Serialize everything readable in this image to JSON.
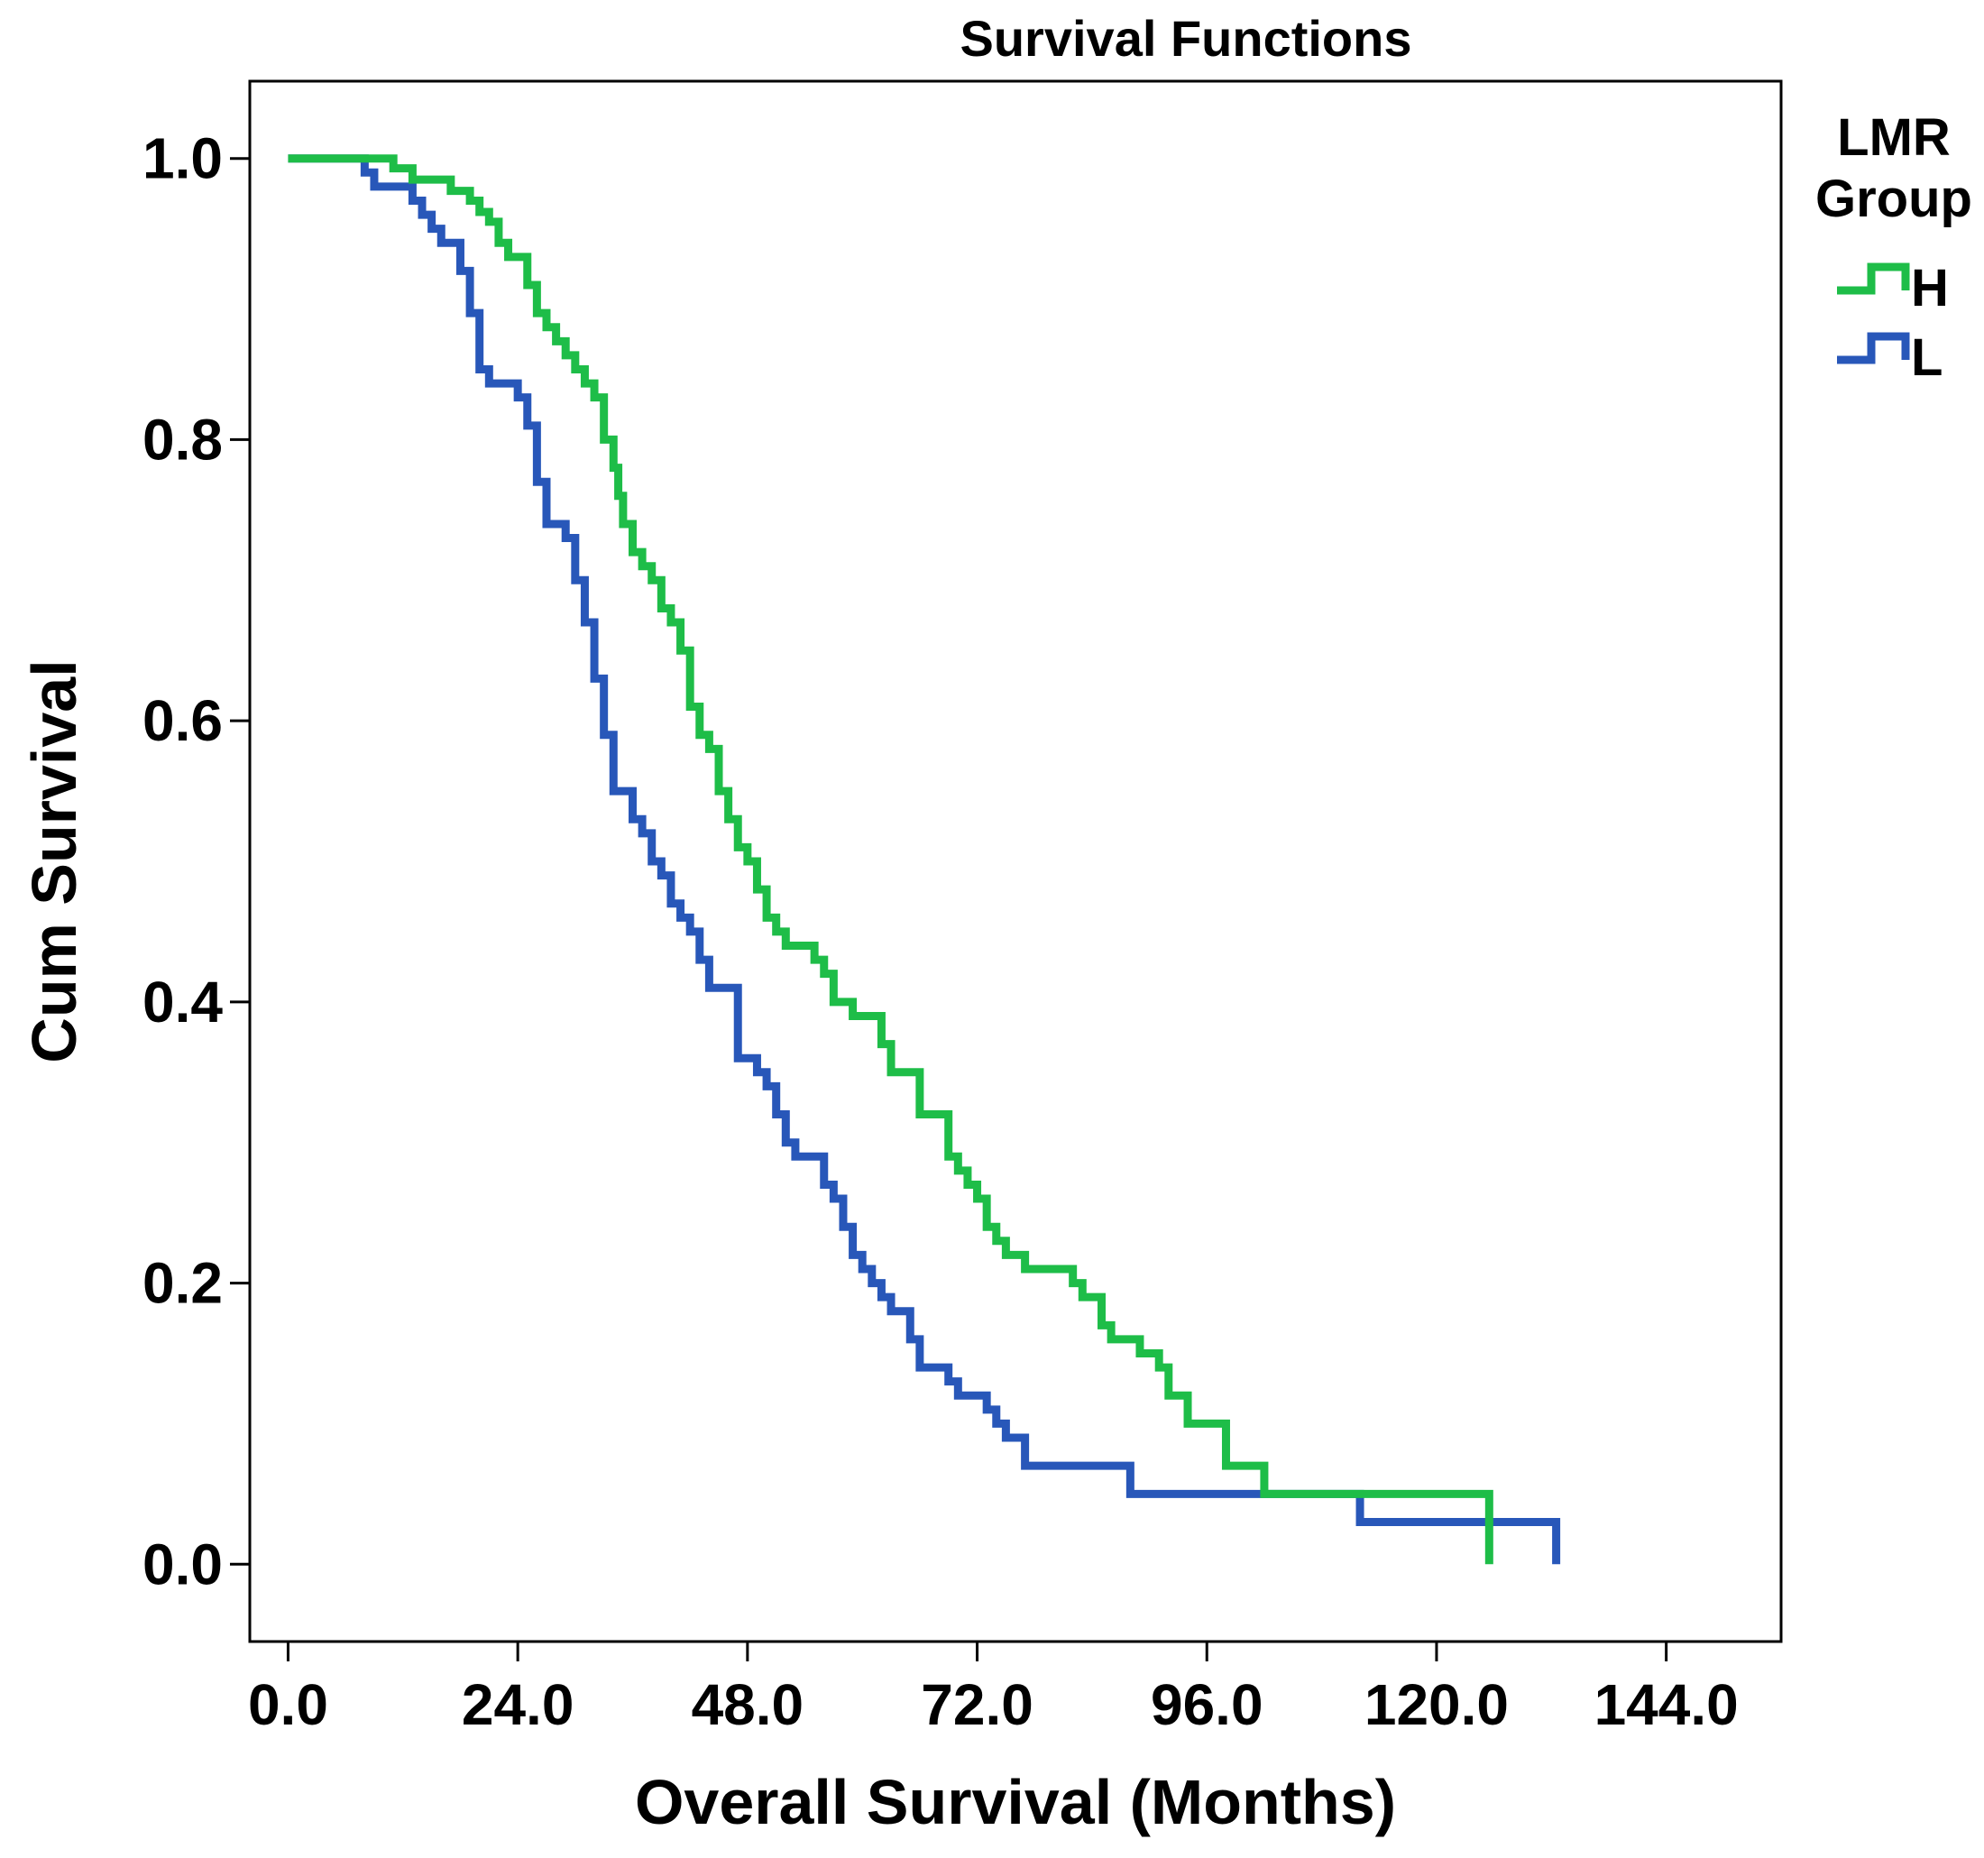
{
  "chart_data": {
    "type": "line",
    "title": "Survival Functions",
    "xlabel": "Overall Survival (Months)",
    "ylabel": "Cum Survival",
    "xlim": [
      -4,
      156
    ],
    "ylim": [
      -0.055,
      1.055
    ],
    "x_ticks": [
      0,
      24,
      48,
      72,
      96,
      120,
      144
    ],
    "x_tick_labels": [
      "0.0",
      "24.0",
      "48.0",
      "72.0",
      "96.0",
      "120.0",
      "144.0"
    ],
    "y_ticks": [
      0,
      0.2,
      0.4,
      0.6,
      0.8,
      1.0
    ],
    "y_tick_labels": [
      "0.0",
      "0.2",
      "0.4",
      "0.6",
      "0.8",
      "1.0"
    ],
    "legend": {
      "title_line1": "LMR",
      "title_line2": "Group",
      "position": "right"
    },
    "series": [
      {
        "name": "H",
        "color": "#1ebd48",
        "x": [
          0,
          11,
          13,
          17,
          19,
          20,
          21,
          22,
          23,
          25,
          26,
          27,
          28,
          29,
          30,
          31,
          32,
          33,
          34,
          34.5,
          35,
          36,
          37,
          38,
          39,
          40,
          41,
          42,
          43,
          44,
          45,
          46,
          47,
          48,
          49,
          50,
          51,
          52,
          55,
          56,
          57,
          59,
          60,
          62,
          63,
          66,
          69,
          70,
          71,
          72,
          73,
          74,
          75,
          77,
          82,
          83,
          85,
          86,
          89,
          91,
          92,
          94,
          98,
          102,
          125.5
        ],
        "y": [
          1.0,
          0.993,
          0.985,
          0.977,
          0.97,
          0.962,
          0.955,
          0.94,
          0.93,
          0.91,
          0.89,
          0.88,
          0.87,
          0.86,
          0.85,
          0.84,
          0.83,
          0.8,
          0.78,
          0.76,
          0.74,
          0.72,
          0.71,
          0.7,
          0.68,
          0.67,
          0.65,
          0.61,
          0.59,
          0.58,
          0.55,
          0.53,
          0.51,
          0.5,
          0.48,
          0.46,
          0.45,
          0.44,
          0.43,
          0.42,
          0.4,
          0.39,
          0.39,
          0.37,
          0.35,
          0.32,
          0.29,
          0.28,
          0.27,
          0.26,
          0.24,
          0.23,
          0.22,
          0.21,
          0.2,
          0.19,
          0.17,
          0.16,
          0.15,
          0.14,
          0.12,
          0.1,
          0.07,
          0.05,
          0.035
        ],
        "censor_end_x": 125.5,
        "censor_end_y": 0.0
      },
      {
        "name": "L",
        "color": "#2857b9",
        "x": [
          0,
          8,
          9,
          13,
          14,
          15,
          16,
          18,
          19,
          20,
          21,
          24,
          25,
          26,
          27,
          29,
          30,
          31,
          32,
          33,
          34,
          36,
          37,
          38,
          39,
          40,
          41,
          42,
          43,
          44,
          47,
          49,
          50,
          51,
          52,
          53,
          56,
          57,
          58,
          59,
          60,
          61,
          62,
          63,
          65,
          66,
          69,
          70,
          73,
          74,
          75,
          77,
          88,
          112,
          132.5
        ],
        "y": [
          1.0,
          0.99,
          0.98,
          0.97,
          0.96,
          0.95,
          0.94,
          0.92,
          0.89,
          0.85,
          0.84,
          0.83,
          0.81,
          0.77,
          0.74,
          0.73,
          0.7,
          0.67,
          0.63,
          0.59,
          0.55,
          0.53,
          0.52,
          0.5,
          0.49,
          0.47,
          0.46,
          0.45,
          0.43,
          0.41,
          0.36,
          0.35,
          0.34,
          0.32,
          0.3,
          0.29,
          0.27,
          0.26,
          0.24,
          0.22,
          0.21,
          0.2,
          0.19,
          0.18,
          0.16,
          0.14,
          0.13,
          0.12,
          0.11,
          0.1,
          0.09,
          0.07,
          0.05,
          0.03,
          0.02
        ],
        "censor_end_x": 132.5,
        "censor_end_y": 0.0
      }
    ]
  }
}
